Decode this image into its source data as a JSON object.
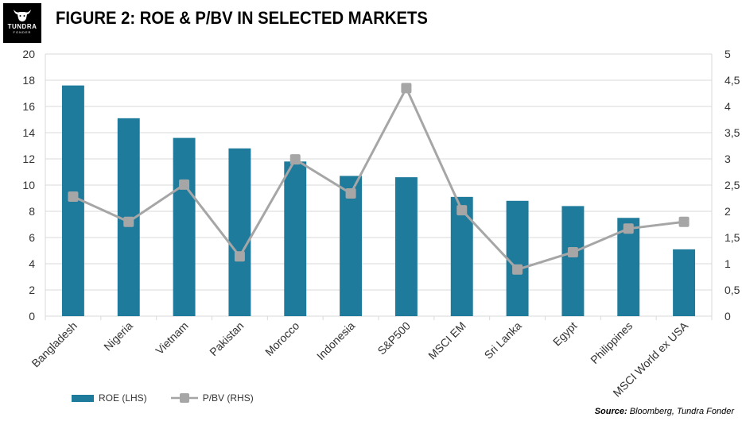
{
  "header": {
    "title": "FIGURE 2: ROE & P/BV IN SELECTED MARKETS",
    "logo_text": "TUNDRA",
    "logo_subtext": "FONDER"
  },
  "source": {
    "label": "Source:",
    "text": "Bloomberg, Tundra Fonder"
  },
  "colors": {
    "bar": "#1f7b9c",
    "line": "#a6a6a6",
    "grid": "#d9d9d9",
    "axis_text": "#333333"
  },
  "chart_data": {
    "type": "bar",
    "title": "FIGURE 2: ROE & P/BV IN SELECTED MARKETS",
    "categories": [
      "Bangladesh",
      "Nigeria",
      "Vietnam",
      "Pakistan",
      "Morocco",
      "Indonesia",
      "S&P500",
      "MSCI EM",
      "Sri Lanka",
      "Egypt",
      "Philippines",
      "MSCI World ex USA"
    ],
    "series": [
      {
        "name": "ROE (LHS)",
        "type": "bar",
        "axis": "left",
        "values": [
          17.6,
          15.1,
          13.6,
          12.8,
          11.8,
          10.7,
          10.6,
          9.1,
          8.8,
          8.4,
          7.5,
          5.1
        ]
      },
      {
        "name": "P/BV (RHS)",
        "type": "line",
        "axis": "right",
        "values": [
          2.28,
          1.8,
          2.51,
          1.14,
          2.99,
          2.34,
          4.35,
          2.02,
          0.89,
          1.22,
          1.67,
          1.8
        ]
      }
    ],
    "left_axis": {
      "min": 0,
      "max": 20,
      "ticks": [
        "0",
        "2",
        "4",
        "6",
        "8",
        "10",
        "12",
        "14",
        "16",
        "18",
        "20"
      ]
    },
    "right_axis": {
      "min": 0,
      "max": 5,
      "ticks": [
        "0",
        "0,5",
        "1",
        "1,5",
        "2",
        "2,5",
        "3",
        "3,5",
        "4",
        "4,5",
        "5"
      ]
    },
    "grid": "horizontal",
    "legend": "bottom-left"
  }
}
